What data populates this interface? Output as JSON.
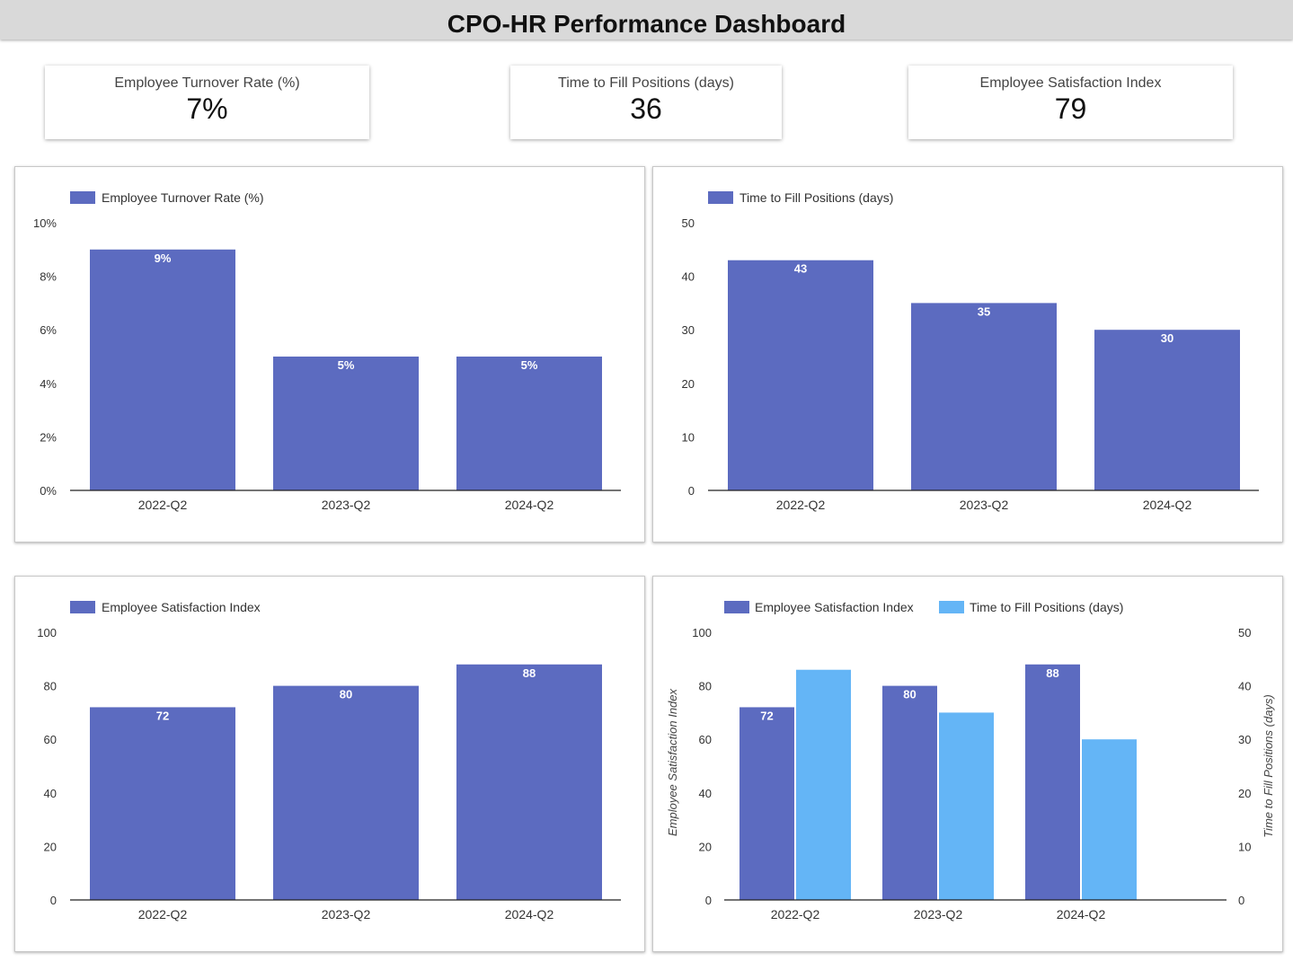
{
  "header": {
    "title": "CPO-HR Performance Dashboard"
  },
  "kpis": [
    {
      "label": "Employee Turnover Rate (%)",
      "value": "7%"
    },
    {
      "label": "Time to Fill Positions (days)",
      "value": "36"
    },
    {
      "label": "Employee Satisfaction Index",
      "value": "79"
    }
  ],
  "colors": {
    "primary": "#5c6bc0",
    "secondary": "#64b5f6",
    "axis": "#222222",
    "header_bg": "#d9d9d9"
  },
  "chart_data": [
    {
      "type": "bar",
      "title": "",
      "categories": [
        "2022-Q2",
        "2023-Q2",
        "2024-Q2"
      ],
      "series": [
        {
          "name": "Employee Turnover Rate (%)",
          "values": [
            9,
            5,
            5
          ],
          "labels": [
            "9%",
            "5%",
            "5%"
          ],
          "color": "#5c6bc0"
        }
      ],
      "ylim": [
        0,
        10
      ],
      "yticks": [
        "0%",
        "2%",
        "4%",
        "6%",
        "8%",
        "10%"
      ],
      "xlabel": "",
      "ylabel": "",
      "legend": "top-left",
      "grid": false
    },
    {
      "type": "bar",
      "title": "",
      "categories": [
        "2022-Q2",
        "2023-Q2",
        "2024-Q2"
      ],
      "series": [
        {
          "name": "Time to Fill Positions (days)",
          "values": [
            43,
            35,
            30
          ],
          "labels": [
            "43",
            "35",
            "30"
          ],
          "color": "#5c6bc0"
        }
      ],
      "ylim": [
        0,
        50
      ],
      "yticks": [
        "0",
        "10",
        "20",
        "30",
        "40",
        "50"
      ],
      "xlabel": "",
      "ylabel": "",
      "legend": "top-left",
      "grid": false
    },
    {
      "type": "bar",
      "title": "",
      "categories": [
        "2022-Q2",
        "2023-Q2",
        "2024-Q2"
      ],
      "series": [
        {
          "name": "Employee Satisfaction Index",
          "values": [
            72,
            80,
            88
          ],
          "labels": [
            "72",
            "80",
            "88"
          ],
          "color": "#5c6bc0"
        }
      ],
      "ylim": [
        0,
        100
      ],
      "yticks": [
        "0",
        "20",
        "40",
        "60",
        "80",
        "100"
      ],
      "xlabel": "",
      "ylabel": "",
      "legend": "top-left",
      "grid": false
    },
    {
      "type": "bar",
      "title": "",
      "categories": [
        "2022-Q2",
        "2023-Q2",
        "2024-Q2"
      ],
      "series": [
        {
          "name": "Employee Satisfaction Index",
          "values": [
            72,
            80,
            88
          ],
          "labels": [
            "72",
            "80",
            "88"
          ],
          "axis": "left",
          "color": "#5c6bc0"
        },
        {
          "name": "Time to Fill Positions (days)",
          "values": [
            43,
            35,
            30
          ],
          "labels": [],
          "axis": "right",
          "color": "#64b5f6"
        }
      ],
      "ylim": [
        0,
        100
      ],
      "yticks": [
        "0",
        "20",
        "40",
        "60",
        "80",
        "100"
      ],
      "y2lim": [
        0,
        50
      ],
      "y2ticks": [
        "0",
        "10",
        "20",
        "30",
        "40",
        "50"
      ],
      "xlabel": "",
      "ylabel": "Employee Satisfaction Index",
      "y2label": "Time to Fill Positions (days)",
      "legend": "top-left",
      "grid": false
    }
  ]
}
